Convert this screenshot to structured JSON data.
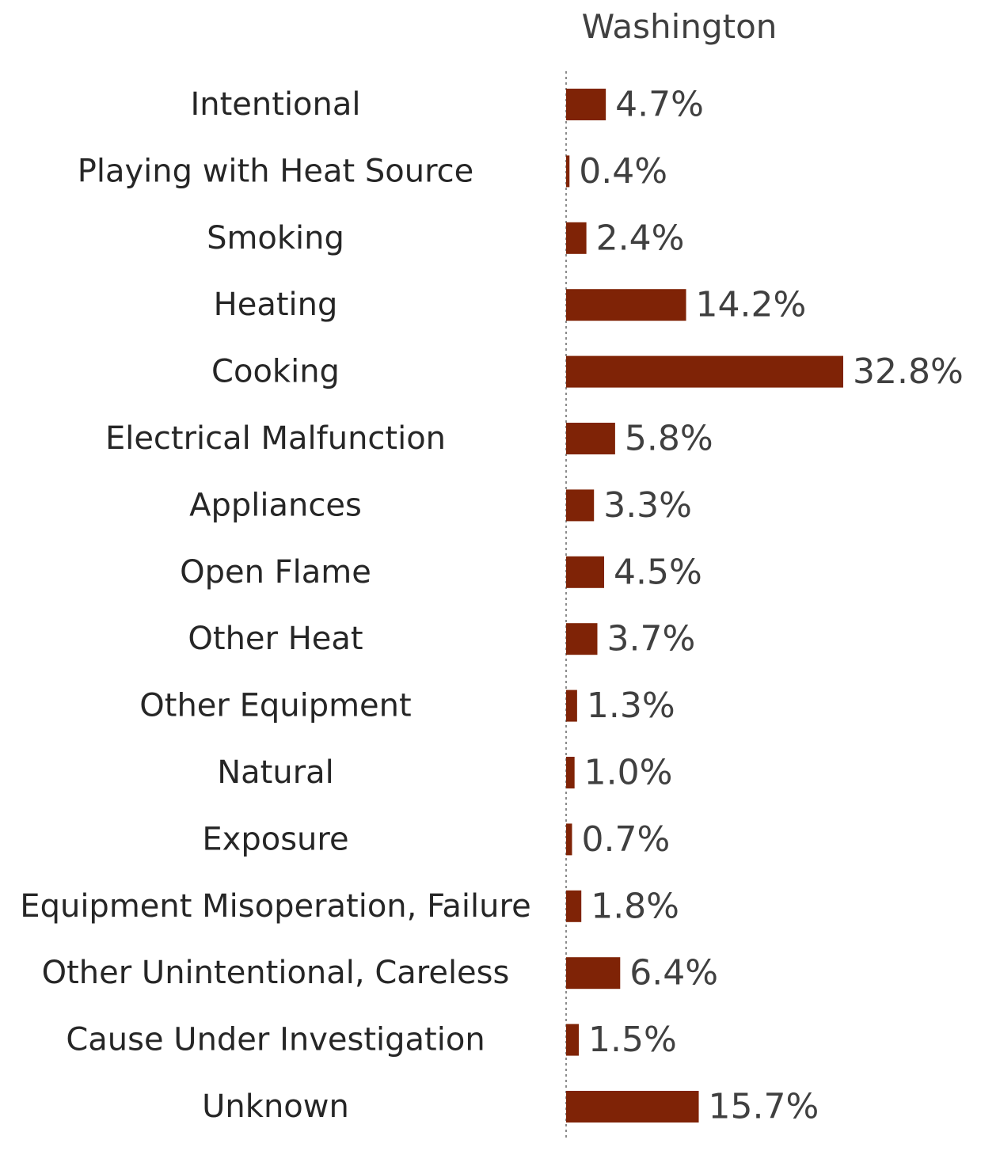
{
  "chart_data": {
    "type": "bar",
    "orientation": "horizontal",
    "title": "Washington",
    "categories": [
      "Intentional",
      "Playing with Heat Source",
      "Smoking",
      "Heating",
      "Cooking",
      "Electrical Malfunction",
      "Appliances",
      "Open Flame",
      "Other Heat",
      "Other Equipment",
      "Natural",
      "Exposure",
      "Equipment Misoperation, Failure",
      "Other Unintentional, Careless",
      "Cause Under Investigation",
      "Unknown"
    ],
    "values": [
      4.7,
      0.4,
      2.4,
      14.2,
      32.8,
      5.8,
      3.3,
      4.5,
      3.7,
      1.3,
      1.0,
      0.7,
      1.8,
      6.4,
      1.5,
      15.7
    ],
    "value_labels": [
      "4.7%",
      "0.4%",
      "2.4%",
      "14.2%",
      "32.8%",
      "5.8%",
      "3.3%",
      "4.5%",
      "3.7%",
      "1.3%",
      "1.0%",
      "0.7%",
      "1.8%",
      "6.4%",
      "1.5%",
      "15.7%"
    ],
    "unit": "%",
    "xlim": [
      0,
      32.8
    ],
    "grid": false,
    "legend": "none",
    "bar_color": "#7f2306",
    "axis_line": "dotted"
  }
}
